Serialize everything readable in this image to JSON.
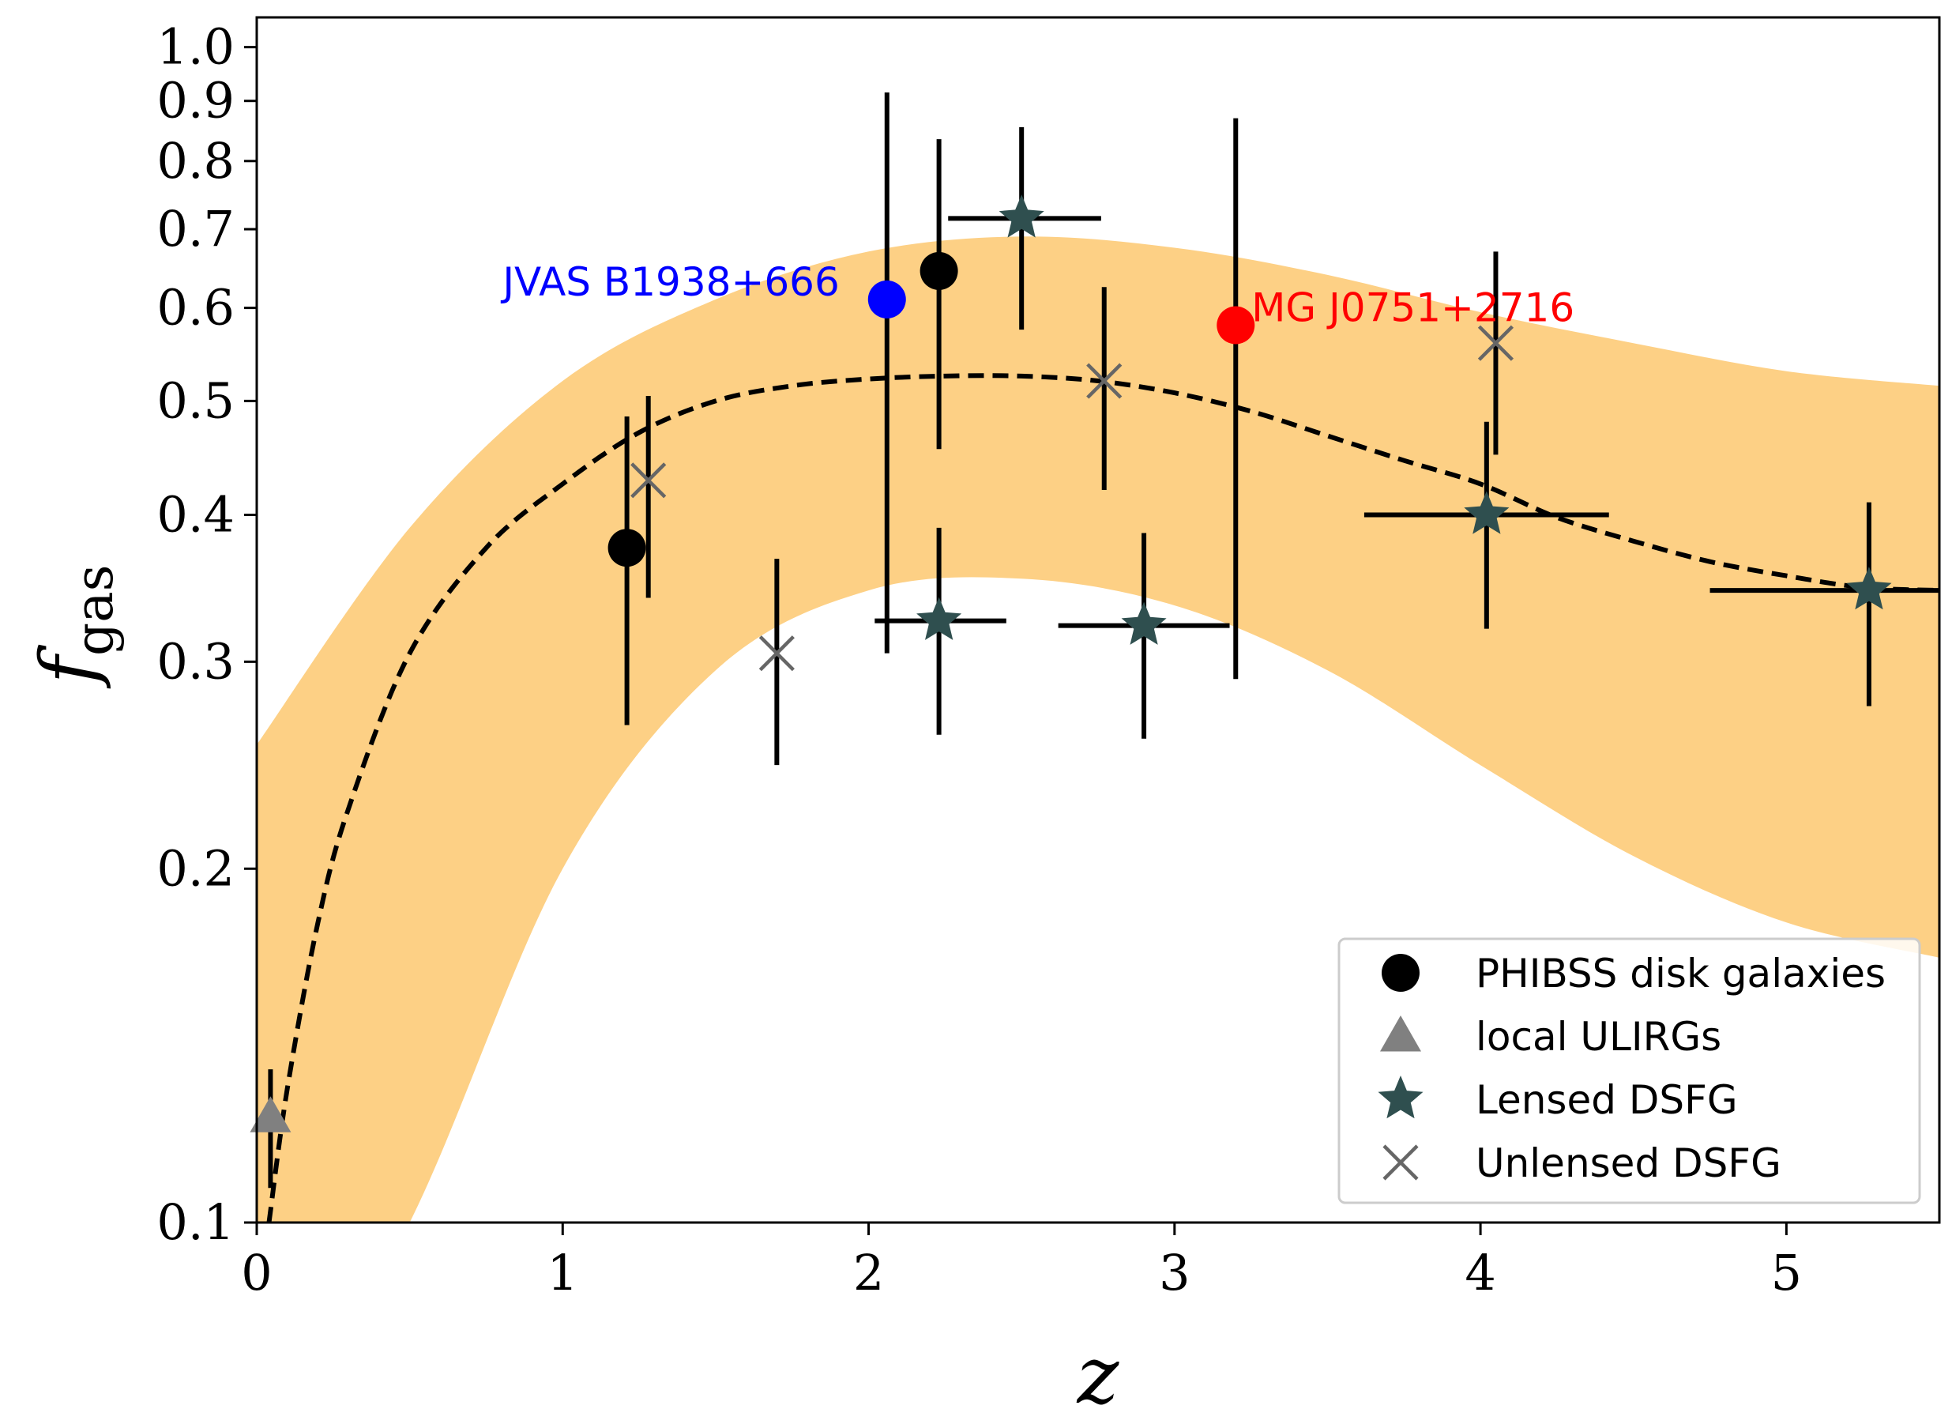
{
  "chart_data": {
    "type": "scatter",
    "xlabel": "z",
    "ylabel": "f",
    "ylabel_sub": "gas",
    "xlim": [
      0,
      5.5
    ],
    "ylim": [
      0.1,
      1.06
    ],
    "yscale": "log",
    "x_ticks": [
      0,
      1,
      2,
      3,
      4,
      5
    ],
    "x_tick_labels": [
      "0",
      "1",
      "2",
      "3",
      "4",
      "5"
    ],
    "y_ticks": [
      0.1,
      0.2,
      0.3,
      0.4,
      0.5,
      0.6,
      0.7,
      0.8,
      0.9,
      1.0
    ],
    "y_tick_labels": [
      "0.1",
      "0.2",
      "0.3",
      "0.4",
      "0.5",
      "0.6",
      "0.7",
      "0.8",
      "0.9",
      "1.0"
    ],
    "grid": false,
    "legend_position": "lower-right",
    "band": {
      "color": "#fdd085",
      "x": [
        0.0,
        0.5,
        1.0,
        1.5,
        2.0,
        2.5,
        3.0,
        3.5,
        4.0,
        4.5,
        5.0,
        5.5
      ],
      "upper": [
        0.255,
        0.39,
        0.52,
        0.61,
        0.67,
        0.69,
        0.675,
        0.64,
        0.595,
        0.56,
        0.53,
        0.515
      ],
      "lower": [
        0.06,
        0.1,
        0.2,
        0.295,
        0.345,
        0.353,
        0.335,
        0.295,
        0.245,
        0.205,
        0.18,
        0.168
      ]
    },
    "model_curve": {
      "style": "dashed",
      "color": "#000000",
      "x": [
        0.04,
        0.1,
        0.2,
        0.3,
        0.5,
        0.75,
        1.0,
        1.25,
        1.5,
        1.75,
        2.0,
        2.25,
        2.5,
        2.75,
        3.0,
        3.25,
        3.5,
        3.75,
        4.0,
        4.25,
        4.5,
        4.75,
        5.0,
        5.25,
        5.5
      ],
      "y": [
        0.1,
        0.13,
        0.18,
        0.225,
        0.305,
        0.375,
        0.425,
        0.47,
        0.5,
        0.515,
        0.522,
        0.525,
        0.525,
        0.52,
        0.508,
        0.49,
        0.467,
        0.445,
        0.425,
        0.398,
        0.38,
        0.365,
        0.355,
        0.347,
        0.345
      ]
    },
    "series": [
      {
        "name": "PHIBSS disk galaxies",
        "marker": "circle",
        "color": "#000000",
        "points": [
          {
            "x": 1.21,
            "y": 0.375,
            "ylo": 0.265,
            "yhi": 0.485
          },
          {
            "x": 2.23,
            "y": 0.645,
            "ylo": 0.455,
            "yhi": 0.835
          }
        ]
      },
      {
        "name": "local ULIRGs",
        "marker": "triangle",
        "color": "#808080",
        "points": [
          {
            "x": 0.045,
            "y": 0.123,
            "ylo": 0.107,
            "yhi": 0.135
          }
        ]
      },
      {
        "name": "Lensed DSFG",
        "marker": "star",
        "color": "#2f4f4f",
        "points": [
          {
            "x": 2.5,
            "y": 0.715,
            "xlo": 2.26,
            "xhi": 2.76,
            "ylo": 0.575,
            "yhi": 0.855
          },
          {
            "x": 2.23,
            "y": 0.325,
            "xlo": 2.02,
            "xhi": 2.45,
            "ylo": 0.26,
            "yhi": 0.39
          },
          {
            "x": 2.9,
            "y": 0.322,
            "xlo": 2.62,
            "xhi": 3.18,
            "ylo": 0.258,
            "yhi": 0.386
          },
          {
            "x": 4.02,
            "y": 0.4,
            "xlo": 3.62,
            "xhi": 4.42,
            "ylo": 0.32,
            "yhi": 0.48
          },
          {
            "x": 5.27,
            "y": 0.345,
            "xlo": 4.75,
            "xhi": 5.5,
            "ylo": 0.275,
            "yhi": 0.41
          }
        ]
      },
      {
        "name": "Unlensed DSFG",
        "marker": "x",
        "color": "#666666",
        "points": [
          {
            "x": 1.28,
            "y": 0.428,
            "ylo": 0.34,
            "yhi": 0.505
          },
          {
            "x": 1.7,
            "y": 0.305,
            "ylo": 0.245,
            "yhi": 0.367
          },
          {
            "x": 2.77,
            "y": 0.52,
            "ylo": 0.42,
            "yhi": 0.625
          },
          {
            "x": 4.05,
            "y": 0.56,
            "ylo": 0.45,
            "yhi": 0.67
          }
        ]
      }
    ],
    "highlight_points": [
      {
        "label": "JVAS B1938+666",
        "color": "#0000ff",
        "x": 2.06,
        "y": 0.61,
        "ylo": 0.305,
        "yhi": 0.915,
        "label_side": "left"
      },
      {
        "label": "MG J0751+2716",
        "color": "#ff0000",
        "x": 3.2,
        "y": 0.58,
        "ylo": 0.29,
        "yhi": 0.87,
        "label_side": "right"
      }
    ]
  }
}
